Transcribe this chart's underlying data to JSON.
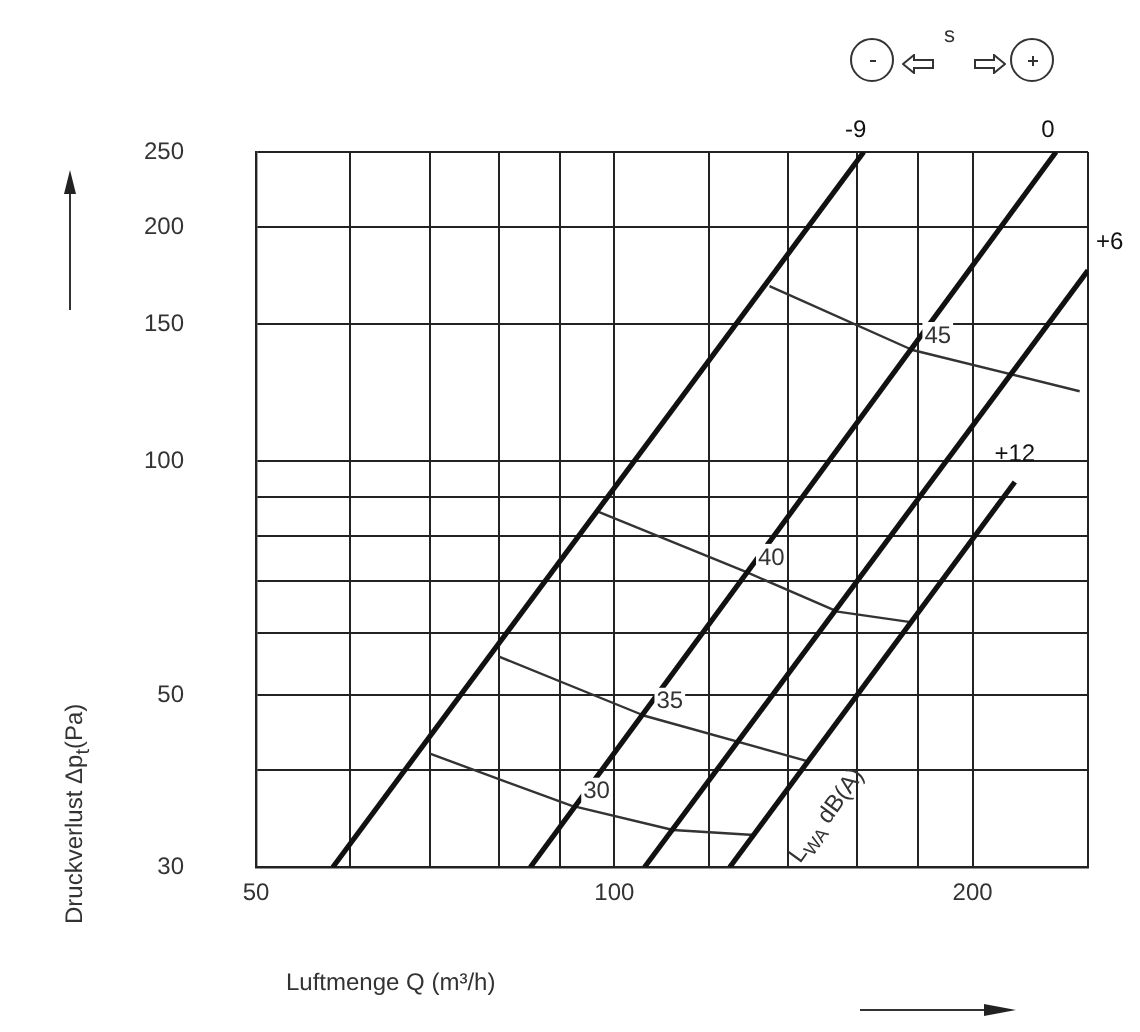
{
  "chart_data": {
    "type": "line",
    "xlabel": "Luftmenge Q (m³/h)",
    "ylabel": "Druckverlust Δp$_{t}$(Pa)",
    "log": "xy",
    "grid": true,
    "legend": false,
    "marker": "none",
    "line_style": "solid",
    "xlim": [
      50,
      250
    ],
    "xticks": [
      50,
      {
        "value": 60,
        "label": null
      },
      {
        "value": 70,
        "label": null
      },
      {
        "value": 80,
        "label": null
      },
      {
        "value": 90,
        "label": null
      },
      100,
      {
        "value": 120,
        "label": null
      },
      {
        "value": 140,
        "label": null
      },
      {
        "value": 160,
        "label": null
      },
      {
        "value": 180,
        "label": null
      },
      200,
      {
        "value": 250,
        "label": null
      }
    ],
    "ylim": [
      30,
      250
    ],
    "yticks": [
      30,
      {
        "value": 40,
        "label": null
      },
      50,
      {
        "value": 60,
        "label": null
      },
      {
        "value": 70,
        "label": null
      },
      {
        "value": 80,
        "label": null
      },
      {
        "value": 90,
        "label": null
      },
      100,
      150,
      200,
      250
    ],
    "series": [
      {
        "name": "-9",
        "color": "#111111",
        "x": [
          58,
          162
        ],
        "values": [
          30,
          250
        ]
      },
      {
        "name": "0",
        "color": "#111111",
        "x": [
          85,
          235
        ],
        "values": [
          30,
          250
        ]
      },
      {
        "name": "+6",
        "color": "#111111",
        "x": [
          106,
          250
        ],
        "values": [
          30,
          176
        ]
      },
      {
        "name": "+12",
        "color": "#111111",
        "x": [
          125,
          217
        ],
        "values": [
          30,
          94
        ]
      },
      {
        "name": "45",
        "color": "#333333",
        "x": [
          135,
          178,
          246
        ],
        "values": [
          168,
          139,
          123
        ]
      },
      {
        "name": "40",
        "color": "#333333",
        "x": [
          97,
          129,
          154,
          178
        ],
        "values": [
          86,
          72,
          64,
          62
        ]
      },
      {
        "name": "35",
        "color": "#333333",
        "x": [
          80,
          106,
          146
        ],
        "values": [
          56,
          47,
          41
        ]
      },
      {
        "name": "30",
        "color": "#333333",
        "x": [
          70,
          92,
          112,
          131
        ],
        "values": [
          42,
          36,
          33.5,
          33
        ]
      }
    ],
    "annotations": [
      "s",
      "L$_{WA}$ dB(A)"
    ]
  }
}
